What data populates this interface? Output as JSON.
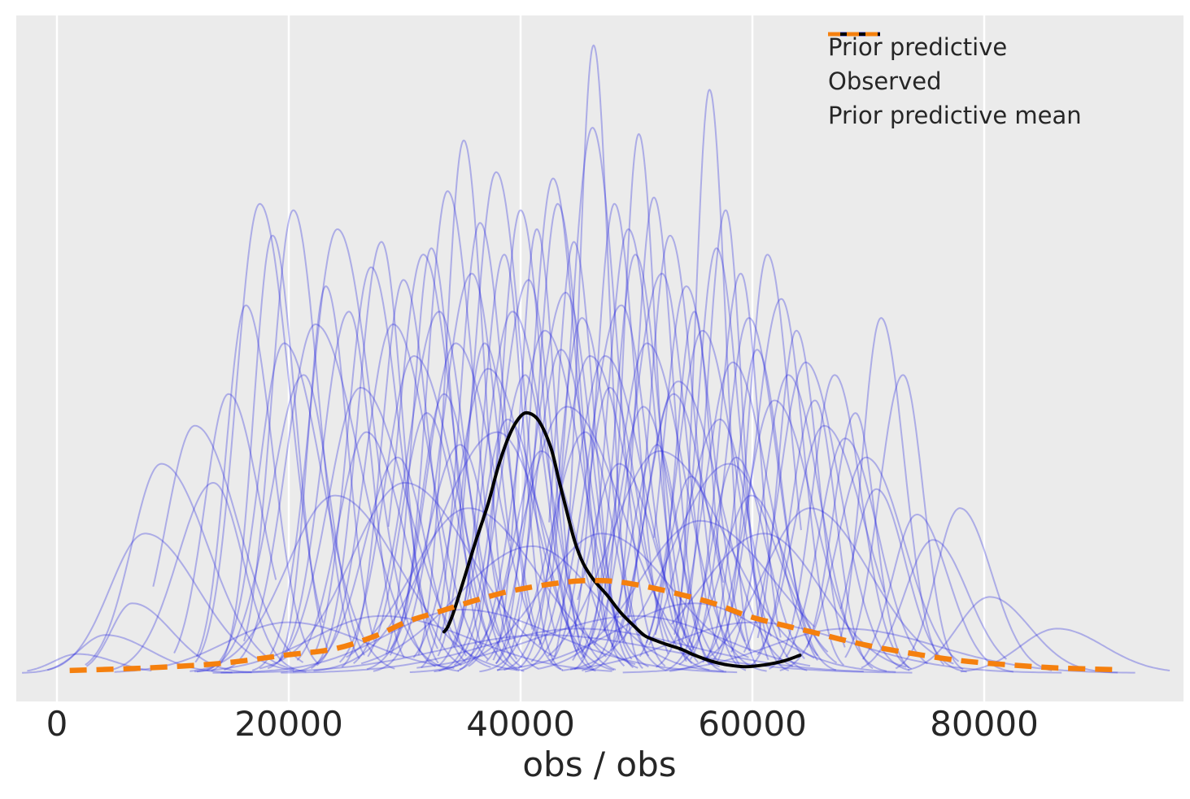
{
  "figure": {
    "background_color": "#ffffff",
    "panel_color": "#ebebeb",
    "grid_color": "#ffffff",
    "text_color": "#262626",
    "xlabel": "obs / obs",
    "x_tick_labels": [
      "0",
      "20000",
      "40000",
      "60000",
      "80000"
    ]
  },
  "legend": {
    "items": [
      {
        "label": "Prior predictive",
        "color": "#2c2cdf",
        "style": "solid"
      },
      {
        "label": "Observed",
        "color": "#000000",
        "style": "solid"
      },
      {
        "label": "Prior predictive mean",
        "color": "#f5800e",
        "style": "dashed"
      }
    ]
  },
  "chart_data": {
    "type": "line",
    "title": "",
    "xlabel": "obs / obs",
    "ylabel": "",
    "xlim": [
      -3500,
      97200
    ],
    "x_ticks": [
      0,
      20000,
      40000,
      60000,
      80000
    ],
    "grid": "vertical-only, white on gray panel",
    "legend_position": "upper right",
    "y_unit": "relative density (fraction of tallest prior predictive curve; y axis unlabeled)",
    "series": [
      {
        "name": "Prior predictive",
        "type": "kde_ensemble",
        "color": "#2828de",
        "alpha": 0.32,
        "line_width": 2,
        "n_curves": 130,
        "curve_format": [
          "center_x",
          "sigma_x",
          "peak_rel_height",
          "skew"
        ],
        "curves": [
          [
            1800,
            2600,
            0.03,
            0.2
          ],
          [
            4200,
            3000,
            0.06,
            0.25
          ],
          [
            6500,
            2600,
            0.11,
            0.3
          ],
          [
            7600,
            3800,
            0.22,
            0.2
          ],
          [
            9000,
            3300,
            0.33,
            0.22
          ],
          [
            11900,
            3100,
            0.39,
            0.2
          ],
          [
            13500,
            2800,
            0.3,
            -0.1
          ],
          [
            14800,
            2400,
            0.44,
            0.15
          ],
          [
            16300,
            2000,
            0.58,
            0.15
          ],
          [
            17500,
            2300,
            0.74,
            0.12
          ],
          [
            18600,
            1800,
            0.69,
            0.1
          ],
          [
            19600,
            2700,
            0.52,
            0.2
          ],
          [
            20400,
            2000,
            0.73,
            0.08
          ],
          [
            21300,
            2500,
            0.47,
            -0.12
          ],
          [
            22300,
            3200,
            0.55,
            0.2
          ],
          [
            23200,
            1700,
            0.61,
            0.1
          ],
          [
            24200,
            2600,
            0.7,
            0.12
          ],
          [
            25200,
            2100,
            0.57,
            -0.1
          ],
          [
            26200,
            3400,
            0.45,
            0.18
          ],
          [
            27100,
            2200,
            0.64,
            0.1
          ],
          [
            28000,
            1900,
            0.68,
            -0.06
          ],
          [
            29000,
            2800,
            0.55,
            0.15
          ],
          [
            29900,
            2000,
            0.62,
            0.08
          ],
          [
            30800,
            3000,
            0.5,
            0.18
          ],
          [
            31600,
            2300,
            0.66,
            0.1
          ],
          [
            32300,
            1700,
            0.67,
            0.08
          ],
          [
            33000,
            2500,
            0.57,
            -0.1
          ],
          [
            33700,
            2000,
            0.76,
            0.12
          ],
          [
            34400,
            2900,
            0.52,
            0.16
          ],
          [
            35100,
            1600,
            0.84,
            0.06
          ],
          [
            35800,
            2400,
            0.63,
            -0.08
          ],
          [
            36500,
            1900,
            0.71,
            0.1
          ],
          [
            37200,
            3100,
            0.48,
            0.15
          ],
          [
            37900,
            2100,
            0.79,
            0.08
          ],
          [
            38600,
            1700,
            0.66,
            -0.06
          ],
          [
            39300,
            2600,
            0.57,
            0.12
          ],
          [
            40000,
            1800,
            0.73,
            0.08
          ],
          [
            40700,
            2200,
            0.62,
            -0.1
          ],
          [
            41400,
            1500,
            0.7,
            0.06
          ],
          [
            42100,
            2800,
            0.54,
            0.13
          ],
          [
            42800,
            1900,
            0.78,
            0.08
          ],
          [
            43200,
            1800,
            0.74,
            0.1
          ],
          [
            43900,
            2400,
            0.6,
            -0.08
          ],
          [
            44600,
            1600,
            0.68,
            0.08
          ],
          [
            45300,
            2100,
            0.56,
            0.11
          ],
          [
            46000,
            2900,
            0.5,
            0.16
          ],
          [
            46200,
            2000,
            0.86,
            0.06
          ],
          [
            46300,
            1300,
            0.99,
            0.04
          ],
          [
            50200,
            1400,
            0.85,
            0.06
          ],
          [
            56300,
            1300,
            0.92,
            0.06
          ],
          [
            57700,
            1500,
            0.73,
            -0.08
          ],
          [
            48100,
            1700,
            0.74,
            0.08
          ],
          [
            49900,
            1900,
            0.66,
            0.1
          ],
          [
            61300,
            1800,
            0.66,
            0.1
          ],
          [
            47300,
            2900,
            0.5,
            0.15
          ],
          [
            48700,
            2500,
            0.58,
            -0.1
          ],
          [
            49300,
            2000,
            0.7,
            0.1
          ],
          [
            50900,
            2800,
            0.52,
            0.15
          ],
          [
            51500,
            1600,
            0.75,
            0.06
          ],
          [
            52200,
            2300,
            0.63,
            -0.1
          ],
          [
            52900,
            1900,
            0.69,
            0.08
          ],
          [
            53600,
            3100,
            0.46,
            0.16
          ],
          [
            54300,
            2100,
            0.61,
            0.08
          ],
          [
            55000,
            1500,
            0.57,
            -0.06
          ],
          [
            55700,
            2500,
            0.54,
            0.12
          ],
          [
            56900,
            1800,
            0.67,
            0.08
          ],
          [
            58300,
            2700,
            0.49,
            0.13
          ],
          [
            59000,
            1700,
            0.63,
            -0.08
          ],
          [
            59700,
            2200,
            0.56,
            0.1
          ],
          [
            60400,
            1900,
            0.51,
            0.08
          ],
          [
            61900,
            2900,
            0.43,
            0.16
          ],
          [
            62500,
            2100,
            0.59,
            -0.08
          ],
          [
            63100,
            2400,
            0.47,
            0.11
          ],
          [
            63800,
            1700,
            0.54,
            0.08
          ],
          [
            64600,
            2600,
            0.49,
            0.12
          ],
          [
            65400,
            1900,
            0.43,
            -0.08
          ],
          [
            66200,
            3000,
            0.39,
            0.16
          ],
          [
            67100,
            2100,
            0.47,
            0.08
          ],
          [
            68000,
            2500,
            0.37,
            0.12
          ],
          [
            68900,
            1800,
            0.41,
            -0.08
          ],
          [
            69800,
            2900,
            0.34,
            0.14
          ],
          [
            70700,
            2300,
            0.29,
            0.08
          ],
          [
            71100,
            1800,
            0.56,
            0.1
          ],
          [
            73000,
            1900,
            0.47,
            -0.08
          ],
          [
            74200,
            2400,
            0.25,
            0.12
          ],
          [
            75600,
            2700,
            0.21,
            0.1
          ],
          [
            77900,
            2400,
            0.26,
            0.14
          ],
          [
            80500,
            3100,
            0.12,
            0.1
          ],
          [
            86300,
            3600,
            0.07,
            0.12
          ],
          [
            44000,
            4200,
            0.42,
            0.15
          ],
          [
            38000,
            4600,
            0.38,
            -0.12
          ],
          [
            52000,
            5000,
            0.35,
            0.15
          ],
          [
            30000,
            5200,
            0.3,
            0.12
          ],
          [
            58000,
            4400,
            0.33,
            -0.1
          ],
          [
            24000,
            4800,
            0.28,
            0.14
          ],
          [
            65000,
            4600,
            0.26,
            0.12
          ],
          [
            47000,
            5600,
            0.22,
            0.08
          ],
          [
            41000,
            6000,
            0.2,
            -0.08
          ],
          [
            35500,
            5400,
            0.26,
            0.1
          ],
          [
            55500,
            5800,
            0.24,
            0.1
          ],
          [
            61000,
            5200,
            0.22,
            -0.06
          ],
          [
            35000,
            7200,
            0.1,
            0.1
          ],
          [
            50000,
            8000,
            0.09,
            -0.08
          ],
          [
            60000,
            7600,
            0.08,
            0.1
          ],
          [
            28000,
            6800,
            0.09,
            0.12
          ],
          [
            45000,
            8800,
            0.07,
            0.08
          ],
          [
            55000,
            6400,
            0.11,
            -0.06
          ],
          [
            20000,
            6000,
            0.08,
            0.1
          ],
          [
            68000,
            7200,
            0.07,
            0.1
          ],
          [
            42000,
            9600,
            0.06,
            0.08
          ],
          [
            33400,
            2200,
            0.44,
            0.1
          ],
          [
            34800,
            2600,
            0.36,
            -0.08
          ],
          [
            36900,
            2000,
            0.52,
            0.1
          ],
          [
            38900,
            2500,
            0.4,
            0.12
          ],
          [
            40400,
            2100,
            0.47,
            -0.08
          ],
          [
            41800,
            2700,
            0.35,
            0.12
          ],
          [
            43500,
            2300,
            0.51,
            0.08
          ],
          [
            45600,
            2600,
            0.38,
            -0.1
          ],
          [
            47700,
            2200,
            0.45,
            0.1
          ],
          [
            48500,
            2800,
            0.33,
            0.12
          ],
          [
            50600,
            2400,
            0.42,
            0.08
          ],
          [
            51800,
            2000,
            0.36,
            -0.08
          ],
          [
            53200,
            2600,
            0.44,
            0.1
          ],
          [
            54700,
            2200,
            0.31,
            0.1
          ],
          [
            57200,
            2700,
            0.4,
            -0.08
          ],
          [
            58600,
            2300,
            0.34,
            0.1
          ],
          [
            59900,
            2800,
            0.28,
            0.1
          ],
          [
            31900,
            2400,
            0.41,
            0.1
          ],
          [
            29400,
            2600,
            0.34,
            -0.08
          ],
          [
            26700,
            2800,
            0.38,
            0.12
          ]
        ]
      },
      {
        "name": "Observed",
        "type": "kde",
        "color": "#000000",
        "line_width": 4,
        "points": [
          [
            33400,
            0.065
          ],
          [
            33700,
            0.072
          ],
          [
            34200,
            0.095
          ],
          [
            35100,
            0.147
          ],
          [
            36100,
            0.206
          ],
          [
            37200,
            0.267
          ],
          [
            38100,
            0.327
          ],
          [
            39100,
            0.378
          ],
          [
            40000,
            0.405
          ],
          [
            40700,
            0.41
          ],
          [
            41600,
            0.397
          ],
          [
            42600,
            0.356
          ],
          [
            43300,
            0.305
          ],
          [
            44000,
            0.254
          ],
          [
            44700,
            0.206
          ],
          [
            45400,
            0.173
          ],
          [
            46300,
            0.147
          ],
          [
            47500,
            0.122
          ],
          [
            48600,
            0.096
          ],
          [
            49800,
            0.074
          ],
          [
            50700,
            0.059
          ],
          [
            51700,
            0.051
          ],
          [
            52600,
            0.045
          ],
          [
            53800,
            0.038
          ],
          [
            54900,
            0.029
          ],
          [
            56400,
            0.019
          ],
          [
            57800,
            0.013
          ],
          [
            59400,
            0.01
          ],
          [
            61100,
            0.013
          ],
          [
            62700,
            0.019
          ],
          [
            64100,
            0.028
          ]
        ]
      },
      {
        "name": "Prior predictive mean",
        "type": "kde_mean",
        "color": "#f5800e",
        "line_width": 6.5,
        "dash": [
          21,
          12
        ],
        "points": [
          [
            1100,
            0.004
          ],
          [
            7700,
            0.008
          ],
          [
            14000,
            0.015
          ],
          [
            19600,
            0.028
          ],
          [
            23900,
            0.038
          ],
          [
            27400,
            0.058
          ],
          [
            30200,
            0.081
          ],
          [
            33000,
            0.097
          ],
          [
            35800,
            0.113
          ],
          [
            38600,
            0.127
          ],
          [
            41400,
            0.137
          ],
          [
            44200,
            0.144
          ],
          [
            46300,
            0.146
          ],
          [
            48400,
            0.144
          ],
          [
            51200,
            0.135
          ],
          [
            54000,
            0.123
          ],
          [
            56800,
            0.109
          ],
          [
            59600,
            0.09
          ],
          [
            62500,
            0.076
          ],
          [
            65300,
            0.064
          ],
          [
            68100,
            0.051
          ],
          [
            70900,
            0.04
          ],
          [
            73700,
            0.031
          ],
          [
            76500,
            0.023
          ],
          [
            79300,
            0.017
          ],
          [
            82800,
            0.012
          ],
          [
            86300,
            0.008
          ],
          [
            91800,
            0.005
          ]
        ]
      }
    ]
  }
}
